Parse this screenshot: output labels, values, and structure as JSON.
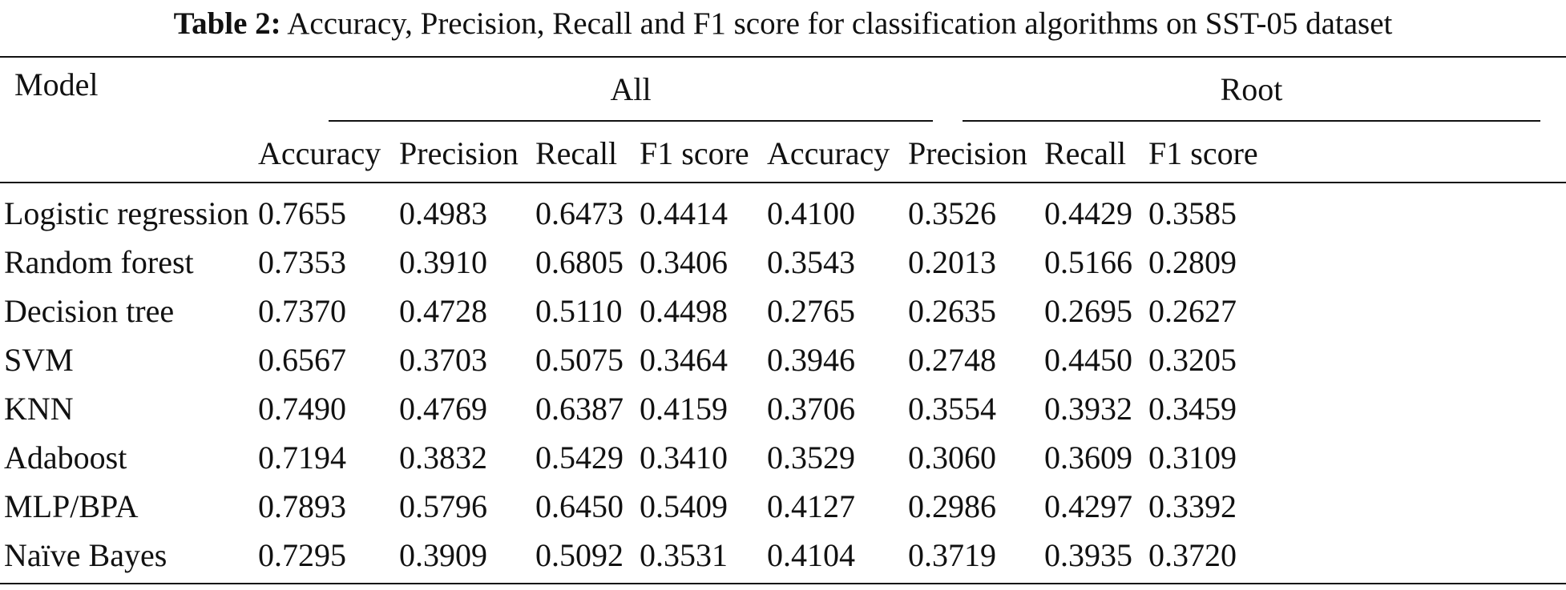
{
  "caption": {
    "label": "Table 2:",
    "text": "Accuracy, Precision, Recall and F1 score for classification algorithms on SST-05 dataset"
  },
  "table": {
    "model_header": "Model",
    "groups": [
      "All",
      "Root"
    ],
    "metrics": [
      "Accuracy",
      "Precision",
      "Recall",
      "F1 score",
      "Accuracy",
      "Precision",
      "Recall",
      "F1 score"
    ],
    "rows": [
      {
        "model": "Logistic regression",
        "values": [
          "0.7655",
          "0.4983",
          "0.6473",
          "0.4414",
          "0.4100",
          "0.3526",
          "0.4429",
          "0.3585"
        ]
      },
      {
        "model": "Random forest",
        "values": [
          "0.7353",
          "0.3910",
          "0.6805",
          "0.3406",
          "0.3543",
          "0.2013",
          "0.5166",
          "0.2809"
        ]
      },
      {
        "model": "Decision tree",
        "values": [
          "0.7370",
          "0.4728",
          "0.5110",
          "0.4498",
          "0.2765",
          "0.2635",
          "0.2695",
          "0.2627"
        ]
      },
      {
        "model": "SVM",
        "values": [
          "0.6567",
          "0.3703",
          "0.5075",
          "0.3464",
          "0.3946",
          "0.2748",
          "0.4450",
          "0.3205"
        ]
      },
      {
        "model": "KNN",
        "values": [
          "0.7490",
          "0.4769",
          "0.6387",
          "0.4159",
          "0.3706",
          "0.3554",
          "0.3932",
          "0.3459"
        ]
      },
      {
        "model": "Adaboost",
        "values": [
          "0.7194",
          "0.3832",
          "0.5429",
          "0.3410",
          "0.3529",
          "0.3060",
          "0.3609",
          "0.3109"
        ]
      },
      {
        "model": "MLP/BPA",
        "values": [
          "0.7893",
          "0.5796",
          "0.6450",
          "0.5409",
          "0.4127",
          "0.2986",
          "0.4297",
          "0.3392"
        ]
      },
      {
        "model": "Naïve Bayes",
        "values": [
          "0.7295",
          "0.3909",
          "0.5092",
          "0.3531",
          "0.4104",
          "0.3719",
          "0.3935",
          "0.3720"
        ]
      }
    ]
  }
}
